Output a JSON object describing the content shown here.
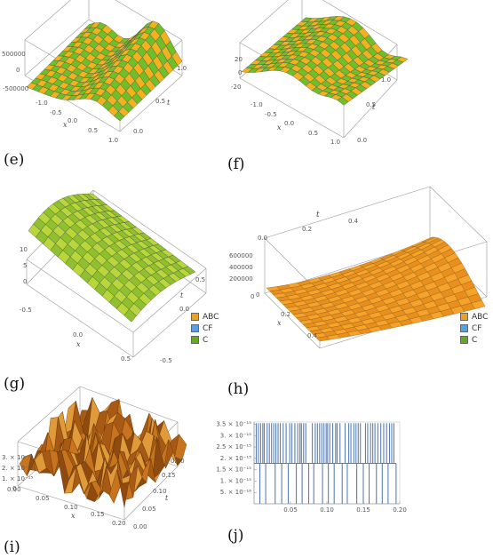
{
  "panels": {
    "e": {
      "caption": "(e)",
      "z_ticks": [
        "500000",
        "0",
        "-500000"
      ],
      "x_label": "x",
      "x_ticks": [
        "-1.0",
        "-0.5",
        "0.0",
        "0.5",
        "1.0"
      ],
      "t_label": "t",
      "t_ticks": [
        "0.0",
        "0.5",
        "1.0"
      ]
    },
    "f": {
      "caption": "(f)",
      "z_ticks": [
        "20",
        "0",
        "-20"
      ],
      "x_label": "x",
      "x_ticks": [
        "-1.0",
        "-0.5",
        "0.0",
        "0.5",
        "1.0"
      ],
      "t_label": "t",
      "t_ticks": [
        "0.0",
        "0.5",
        "1.0"
      ]
    },
    "g": {
      "caption": "(g)",
      "z_ticks": [
        "10",
        "5",
        "0"
      ],
      "x_label": "x",
      "x_ticks": [
        "-0.5",
        "0.0",
        "0.5"
      ],
      "t_label": "t",
      "t_ticks": [
        "0.5",
        "0.0",
        "-0.5"
      ],
      "legend": [
        {
          "label": "ABC",
          "color": "#f0a020"
        },
        {
          "label": "CF",
          "color": "#5aa0e0"
        },
        {
          "label": "C",
          "color": "#66aa22"
        }
      ]
    },
    "h": {
      "caption": "(h)",
      "z_ticks": [
        "600000",
        "400000",
        "200000",
        "0"
      ],
      "x_label": "x",
      "x_ticks": [
        "0",
        "0.2",
        "0.4"
      ],
      "t_label": "t",
      "t_ticks": [
        "0.0",
        "0.2",
        "0.4"
      ],
      "legend": [
        {
          "label": "ABC",
          "color": "#f0a020"
        },
        {
          "label": "CF",
          "color": "#5aa0e0"
        },
        {
          "label": "C",
          "color": "#66aa22"
        }
      ]
    },
    "i": {
      "caption": "(i)",
      "z_ticks": [
        "3. × 10⁻¹⁵",
        "2. × 10⁻¹⁵",
        "1. × 10⁻¹⁵",
        "0"
      ],
      "x_label": "x",
      "x_ticks": [
        "0.00",
        "0.05",
        "0.10",
        "0.15",
        "0.20"
      ],
      "t_label": "t",
      "t_ticks": [
        "0.00",
        "0.05",
        "0.10",
        "0.15",
        "0.20"
      ]
    },
    "j": {
      "caption": "(j)"
    }
  },
  "chart_data": {
    "type": "bar",
    "title": "",
    "xlabel": "",
    "ylabel": "",
    "x_ticks": [
      "0.05",
      "0.10",
      "0.15",
      "0.20"
    ],
    "y_ticks": [
      "3.5 × 10⁻¹⁵",
      "3. × 10⁻¹⁵",
      "2.5 × 10⁻¹⁵",
      "2. × 10⁻¹⁵",
      "1.5 × 10⁻¹⁵",
      "1. × 10⁻¹⁵",
      "5. × 10⁻¹⁶"
    ],
    "xlim": [
      0,
      0.2
    ],
    "ylim": [
      0,
      3.6e-15
    ],
    "baseline_value": 1.78e-15,
    "color": "#5b7fb5",
    "spikes": [
      {
        "x": 0.003,
        "y": 3.55e-15
      },
      {
        "x": 0.006,
        "y": 3.55e-15
      },
      {
        "x": 0.009,
        "y": 3.55e-15
      },
      {
        "x": 0.012,
        "y": 3.55e-15
      },
      {
        "x": 0.014,
        "y": 3.55e-15
      },
      {
        "x": 0.018,
        "y": 3.55e-15
      },
      {
        "x": 0.021,
        "y": 3.55e-15
      },
      {
        "x": 0.024,
        "y": 3.55e-15
      },
      {
        "x": 0.027,
        "y": 3.55e-15
      },
      {
        "x": 0.03,
        "y": 3.55e-15
      },
      {
        "x": 0.033,
        "y": 3.55e-15
      },
      {
        "x": 0.036,
        "y": 3.55e-15
      },
      {
        "x": 0.04,
        "y": 3.55e-15
      },
      {
        "x": 0.044,
        "y": 3.55e-15
      },
      {
        "x": 0.049,
        "y": 3.55e-15
      },
      {
        "x": 0.052,
        "y": 3.55e-15
      },
      {
        "x": 0.056,
        "y": 3.55e-15
      },
      {
        "x": 0.06,
        "y": 3.55e-15
      },
      {
        "x": 0.063,
        "y": 3.55e-15
      },
      {
        "x": 0.065,
        "y": 3.55e-15
      },
      {
        "x": 0.068,
        "y": 3.55e-15
      },
      {
        "x": 0.071,
        "y": 3.55e-15
      },
      {
        "x": 0.08,
        "y": 3.55e-15
      },
      {
        "x": 0.084,
        "y": 3.55e-15
      },
      {
        "x": 0.087,
        "y": 3.55e-15
      },
      {
        "x": 0.09,
        "y": 3.55e-15
      },
      {
        "x": 0.093,
        "y": 3.55e-15
      },
      {
        "x": 0.096,
        "y": 3.55e-15
      },
      {
        "x": 0.099,
        "y": 3.55e-15
      },
      {
        "x": 0.101,
        "y": 3.55e-15
      },
      {
        "x": 0.104,
        "y": 3.55e-15
      },
      {
        "x": 0.108,
        "y": 3.55e-15
      },
      {
        "x": 0.112,
        "y": 3.55e-15
      },
      {
        "x": 0.114,
        "y": 3.55e-15
      },
      {
        "x": 0.118,
        "y": 3.55e-15
      },
      {
        "x": 0.125,
        "y": 3.55e-15
      },
      {
        "x": 0.13,
        "y": 3.55e-15
      },
      {
        "x": 0.133,
        "y": 3.55e-15
      },
      {
        "x": 0.137,
        "y": 3.55e-15
      },
      {
        "x": 0.14,
        "y": 3.55e-15
      },
      {
        "x": 0.143,
        "y": 3.55e-15
      },
      {
        "x": 0.146,
        "y": 3.55e-15
      },
      {
        "x": 0.153,
        "y": 3.55e-15
      },
      {
        "x": 0.156,
        "y": 3.55e-15
      },
      {
        "x": 0.16,
        "y": 3.55e-15
      },
      {
        "x": 0.163,
        "y": 3.55e-15
      },
      {
        "x": 0.166,
        "y": 3.55e-15
      },
      {
        "x": 0.17,
        "y": 3.55e-15
      },
      {
        "x": 0.174,
        "y": 3.55e-15
      },
      {
        "x": 0.178,
        "y": 3.55e-15
      },
      {
        "x": 0.182,
        "y": 3.55e-15
      },
      {
        "x": 0.186,
        "y": 3.55e-15
      },
      {
        "x": 0.189,
        "y": 3.55e-15
      },
      {
        "x": 0.192,
        "y": 3.55e-15
      },
      {
        "x": 0.008,
        "y": 0
      },
      {
        "x": 0.016,
        "y": 0
      },
      {
        "x": 0.029,
        "y": 0
      },
      {
        "x": 0.038,
        "y": 0
      },
      {
        "x": 0.047,
        "y": 0
      },
      {
        "x": 0.058,
        "y": 0
      },
      {
        "x": 0.066,
        "y": 0
      },
      {
        "x": 0.075,
        "y": 0
      },
      {
        "x": 0.082,
        "y": 0
      },
      {
        "x": 0.094,
        "y": 0
      },
      {
        "x": 0.102,
        "y": 0
      },
      {
        "x": 0.11,
        "y": 0
      },
      {
        "x": 0.121,
        "y": 0
      },
      {
        "x": 0.128,
        "y": 0
      },
      {
        "x": 0.141,
        "y": 0
      },
      {
        "x": 0.15,
        "y": 0
      },
      {
        "x": 0.158,
        "y": 0
      },
      {
        "x": 0.168,
        "y": 0
      },
      {
        "x": 0.176,
        "y": 0
      },
      {
        "x": 0.184,
        "y": 0
      },
      {
        "x": 0.195,
        "y": 0
      }
    ]
  }
}
